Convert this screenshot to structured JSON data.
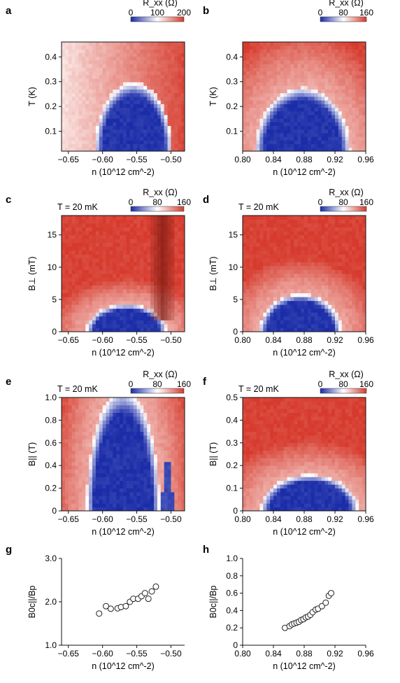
{
  "colors": {
    "low": "#1a2ca8",
    "mid": "#ffffff",
    "high": "#d63a2c",
    "dark_high": "#7e1a12",
    "axis": "#111111",
    "marker_edge": "#222222"
  },
  "chart_data": [
    {
      "panel": "a",
      "type": "heatmap",
      "title": "",
      "xlabel": "n (10^12 cm^-2)",
      "ylabel": "T (K)",
      "xlim": [
        -0.66,
        -0.48
      ],
      "ylim": [
        0.02,
        0.46
      ],
      "xticks": [
        "-0.65",
        "-0.60",
        "-0.55",
        "-0.50"
      ],
      "xtick_values": [
        -0.65,
        -0.6,
        -0.55,
        -0.5
      ],
      "yticks": [
        "0.1",
        "0.2",
        "0.3",
        "0.4"
      ],
      "ytick_values": [
        0.1,
        0.2,
        0.3,
        0.4
      ],
      "colorbar": {
        "label": "R_xx (Ω)",
        "ticks": [
          "0",
          "100",
          "200"
        ],
        "range": [
          0,
          200
        ]
      },
      "annotation": "",
      "dome": {
        "center": -0.555,
        "halfwidth": 0.053,
        "top": 0.28
      },
      "dark_region": false
    },
    {
      "panel": "b",
      "type": "heatmap",
      "title": "",
      "xlabel": "n (10^12 cm^-2)",
      "ylabel": "T (K)",
      "xlim": [
        0.8,
        0.96
      ],
      "ylim": [
        0.02,
        0.46
      ],
      "xticks": [
        "0.80",
        "0.84",
        "0.88",
        "0.92",
        "0.96"
      ],
      "xtick_values": [
        0.8,
        0.84,
        0.88,
        0.92,
        0.96
      ],
      "yticks": [
        "0.1",
        "0.2",
        "0.3",
        "0.4"
      ],
      "ytick_values": [
        0.1,
        0.2,
        0.3,
        0.4
      ],
      "colorbar": {
        "label": "R_xx (Ω)",
        "ticks": [
          "0",
          "80",
          "160"
        ],
        "range": [
          0,
          160
        ]
      },
      "annotation": "",
      "dome": {
        "center": 0.878,
        "halfwidth": 0.058,
        "top": 0.26
      },
      "dark_region": false
    },
    {
      "panel": "c",
      "type": "heatmap",
      "title": "",
      "xlabel": "n (10^12 cm^-2)",
      "ylabel": "B⊥ (mT)",
      "xlim": [
        -0.66,
        -0.48
      ],
      "ylim": [
        0,
        18
      ],
      "xticks": [
        "-0.65",
        "-0.60",
        "-0.55",
        "-0.50"
      ],
      "xtick_values": [
        -0.65,
        -0.6,
        -0.55,
        -0.5
      ],
      "yticks": [
        "0",
        "5",
        "10",
        "15"
      ],
      "ytick_values": [
        0,
        5,
        10,
        15
      ],
      "colorbar": {
        "label": "R_xx (Ω)",
        "ticks": [
          "0",
          "80",
          "160"
        ],
        "range": [
          0,
          160
        ]
      },
      "annotation": "T = 20 mK",
      "dome": {
        "center": -0.565,
        "halfwidth": 0.055,
        "top": 4.0
      },
      "dark_region": true
    },
    {
      "panel": "d",
      "type": "heatmap",
      "title": "",
      "xlabel": "n (10^12 cm^-2)",
      "ylabel": "B⊥ (mT)",
      "xlim": [
        0.8,
        0.96
      ],
      "ylim": [
        0,
        18
      ],
      "xticks": [
        "0.80",
        "0.84",
        "0.88",
        "0.92",
        "0.96"
      ],
      "xtick_values": [
        0.8,
        0.84,
        0.88,
        0.92,
        0.96
      ],
      "yticks": [
        "0",
        "5",
        "10",
        "15"
      ],
      "ytick_values": [
        0,
        5,
        10,
        15
      ],
      "colorbar": {
        "label": "R_xx (Ω)",
        "ticks": [
          "0",
          "80",
          "160"
        ],
        "range": [
          0,
          160
        ]
      },
      "annotation": "T = 20 mK",
      "dome": {
        "center": 0.875,
        "halfwidth": 0.05,
        "top": 5.5
      },
      "dark_region": false
    },
    {
      "panel": "e",
      "type": "heatmap",
      "title": "",
      "xlabel": "n (10^12 cm^-2)",
      "ylabel": "B|| (T)",
      "xlim": [
        -0.66,
        -0.48
      ],
      "ylim": [
        0,
        1.0
      ],
      "xticks": [
        "-0.65",
        "-0.60",
        "-0.55",
        "-0.50"
      ],
      "xtick_values": [
        -0.65,
        -0.6,
        -0.55,
        -0.5
      ],
      "yticks": [
        "0",
        "0.2",
        "0.4",
        "0.6",
        "0.8",
        "1.0"
      ],
      "ytick_values": [
        0,
        0.2,
        0.4,
        0.6,
        0.8,
        1.0
      ],
      "colorbar": {
        "label": "R_xx (Ω)",
        "ticks": [
          "0",
          "80",
          "160"
        ],
        "range": [
          0,
          160
        ]
      },
      "annotation": "T = 20 mK",
      "dome": {
        "center": -0.57,
        "halfwidth": 0.05,
        "top": 1.0
      },
      "dark_region": false
    },
    {
      "panel": "f",
      "type": "heatmap",
      "title": "",
      "xlabel": "n (10^12 cm^-2)",
      "ylabel": "B|| (T)",
      "xlim": [
        0.8,
        0.96
      ],
      "ylim": [
        0,
        0.5
      ],
      "xticks": [
        "0.80",
        "0.84",
        "0.88",
        "0.92",
        "0.96"
      ],
      "xtick_values": [
        0.8,
        0.84,
        0.88,
        0.92,
        0.96
      ],
      "yticks": [
        "0",
        "0.1",
        "0.2",
        "0.3",
        "0.4",
        "0.5"
      ],
      "ytick_values": [
        0,
        0.1,
        0.2,
        0.3,
        0.4,
        0.5
      ],
      "colorbar": {
        "label": "R_xx (Ω)",
        "ticks": [
          "0",
          "80",
          "160"
        ],
        "range": [
          0,
          160
        ]
      },
      "annotation": "T = 20 mK",
      "dome": {
        "center": 0.887,
        "halfwidth": 0.06,
        "top": 0.15
      },
      "dark_region": false
    },
    {
      "panel": "g",
      "type": "scatter",
      "title": "",
      "xlabel": "n (10^12 cm^-2)",
      "ylabel": "B0c||/Bp",
      "xlim": [
        -0.66,
        -0.48
      ],
      "ylim": [
        1.0,
        3.0
      ],
      "xticks": [
        "-0.65",
        "-0.60",
        "-0.55",
        "-0.50"
      ],
      "xtick_values": [
        -0.65,
        -0.6,
        -0.55,
        -0.5
      ],
      "yticks": [
        "1.0",
        "2.0",
        "3.0"
      ],
      "ytick_values": [
        1.0,
        2.0,
        3.0
      ],
      "annotation": "",
      "x": [
        -0.605,
        -0.595,
        -0.588,
        -0.578,
        -0.573,
        -0.566,
        -0.56,
        -0.555,
        -0.548,
        -0.543,
        -0.538,
        -0.533,
        -0.528,
        -0.522
      ],
      "y": [
        1.73,
        1.9,
        1.84,
        1.85,
        1.88,
        1.9,
        2.0,
        2.07,
        2.07,
        2.13,
        2.2,
        2.07,
        2.24,
        2.35
      ]
    },
    {
      "panel": "h",
      "type": "scatter",
      "title": "",
      "xlabel": "n (10^12 cm^-2)",
      "ylabel": "B0c||/Bp",
      "xlim": [
        0.8,
        0.96
      ],
      "ylim": [
        0,
        1.0
      ],
      "xticks": [
        "0.80",
        "0.84",
        "0.88",
        "0.92",
        "0.96"
      ],
      "xtick_values": [
        0.8,
        0.84,
        0.88,
        0.92,
        0.96
      ],
      "yticks": [
        "0",
        "0.2",
        "0.4",
        "0.6",
        "0.8",
        "1.0"
      ],
      "ytick_values": [
        0,
        0.2,
        0.4,
        0.6,
        0.8,
        1.0
      ],
      "annotation": "",
      "x": [
        0.855,
        0.861,
        0.864,
        0.867,
        0.87,
        0.873,
        0.876,
        0.879,
        0.882,
        0.885,
        0.888,
        0.891,
        0.895,
        0.898,
        0.903,
        0.908,
        0.912,
        0.915
      ],
      "y": [
        0.2,
        0.22,
        0.24,
        0.25,
        0.26,
        0.27,
        0.29,
        0.3,
        0.32,
        0.33,
        0.35,
        0.38,
        0.41,
        0.42,
        0.45,
        0.49,
        0.57,
        0.6
      ]
    }
  ]
}
